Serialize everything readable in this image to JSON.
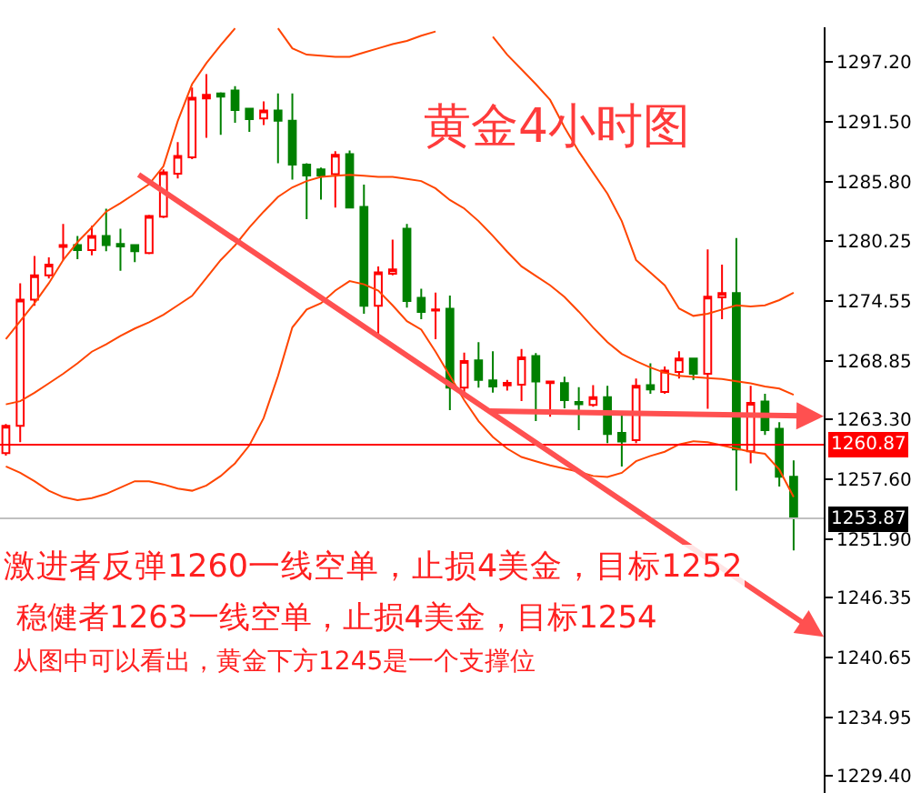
{
  "chart_data": {
    "type": "candlestick",
    "title": "黄金4小时图",
    "categories": [
      null,
      null,
      null,
      null,
      null,
      null,
      null,
      null,
      null,
      null,
      null,
      null,
      null,
      null,
      null,
      null,
      null,
      null,
      null,
      null,
      null,
      null,
      null,
      null,
      null,
      null,
      null,
      null,
      null,
      null,
      null,
      null,
      null,
      null,
      null,
      null,
      null,
      null,
      null,
      null,
      null,
      null,
      null,
      null,
      null,
      null,
      null,
      null,
      null,
      null,
      null,
      null,
      null,
      null,
      null,
      null
    ],
    "ohlc": [
      [
        1260.07,
        1262.83,
        1259.84,
        1262.66
      ],
      [
        1262.66,
        1276.19,
        1261.1,
        1274.63
      ],
      [
        1274.63,
        1278.78,
        1274.06,
        1276.94
      ],
      [
        1276.94,
        1278.66,
        1276.65,
        1277.97
      ],
      [
        1279.64,
        1281.83,
        1278.37,
        1279.81
      ],
      [
        1279.81,
        1280.68,
        1278.49,
        1279.35
      ],
      [
        1279.35,
        1281.66,
        1278.84,
        1280.68
      ],
      [
        1280.68,
        1283.27,
        1279.24,
        1279.81
      ],
      [
        1279.93,
        1281.37,
        1277.39,
        1279.7
      ],
      [
        1279.81,
        1279.81,
        1278.2,
        1279.24
      ],
      [
        1279.07,
        1282.69,
        1278.95,
        1282.58
      ],
      [
        1282.52,
        1287.01,
        1282.4,
        1286.72
      ],
      [
        1286.61,
        1289.6,
        1286.15,
        1288.28
      ],
      [
        1288.16,
        1294.78,
        1287.99,
        1293.8
      ],
      [
        1293.75,
        1296.05,
        1290.0,
        1294.09
      ],
      [
        1294.21,
        1294.32,
        1290.29,
        1293.92
      ],
      [
        1294.49,
        1294.9,
        1291.44,
        1292.65
      ],
      [
        1292.77,
        1292.77,
        1290.58,
        1291.79
      ],
      [
        1291.85,
        1293.46,
        1291.21,
        1292.59
      ],
      [
        1292.59,
        1294.21,
        1287.59,
        1291.62
      ],
      [
        1291.62,
        1294.21,
        1286.03,
        1287.47
      ],
      [
        1287.47,
        1287.59,
        1282.29,
        1286.43
      ],
      [
        1287.01,
        1287.18,
        1284.13,
        1286.43
      ],
      [
        1286.55,
        1288.74,
        1283.38,
        1288.39
      ],
      [
        1288.45,
        1288.8,
        1283.38,
        1283.38
      ],
      [
        1283.44,
        1285.57,
        1273.31,
        1274.06
      ],
      [
        1274.06,
        1277.8,
        1271.06,
        1277.22
      ],
      [
        1277.11,
        1280.33,
        1276.94,
        1277.51
      ],
      [
        1281.37,
        1281.83,
        1273.88,
        1274.52
      ],
      [
        1274.81,
        1275.67,
        1272.79,
        1273.48
      ],
      [
        1273.6,
        1275.32,
        1270.89,
        1273.71
      ],
      [
        1273.77,
        1275.04,
        1264.15,
        1266.28
      ],
      [
        1266.28,
        1269.62,
        1265.59,
        1268.82
      ],
      [
        1268.88,
        1270.6,
        1266.28,
        1267.03
      ],
      [
        1266.98,
        1269.74,
        1265.82,
        1266.4
      ],
      [
        1266.51,
        1267.03,
        1266.0,
        1266.74
      ],
      [
        1266.57,
        1269.95,
        1265.02,
        1269.16
      ],
      [
        1269.28,
        1269.56,
        1263.12,
        1266.86
      ],
      [
        1266.72,
        1266.92,
        1263.52,
        1266.86
      ],
      [
        1266.72,
        1267.32,
        1264.32,
        1265.09
      ],
      [
        1264.93,
        1266.34,
        1262.26,
        1264.7
      ],
      [
        1264.65,
        1266.52,
        1264.47,
        1265.39
      ],
      [
        1265.39,
        1266.46,
        1261.02,
        1261.88
      ],
      [
        1261.99,
        1263.98,
        1258.8,
        1261.18
      ],
      [
        1261.3,
        1267.15,
        1261.02,
        1266.46
      ],
      [
        1266.52,
        1268.59,
        1265.71,
        1266.11
      ],
      [
        1265.88,
        1268.3,
        1265.71,
        1267.9
      ],
      [
        1267.78,
        1269.74,
        1267.15,
        1269.05
      ],
      [
        1269.05,
        1269.05,
        1267.03,
        1267.61
      ],
      [
        1267.61,
        1279.41,
        1264.27,
        1274.92
      ],
      [
        1274.86,
        1277.97,
        1272.79,
        1275.27
      ],
      [
        1275.27,
        1280.5,
        1256.5,
        1260.41
      ],
      [
        1260.24,
        1266.46,
        1259.09,
        1264.85
      ],
      [
        1264.96,
        1265.71,
        1261.79,
        1262.26
      ],
      [
        1262.37,
        1263.0,
        1256.9,
        1257.82
      ],
      [
        1257.82,
        1259.38,
        1250.84,
        1253.87
      ]
    ],
    "series": [
      {
        "type": "line",
        "color": "#ff4500",
        "values": [
          1270.9,
          1272.6,
          1274.3,
          1276.2,
          1278.4,
          1280.1,
          1281.5,
          1283.0,
          1283.8,
          1284.7,
          1285.6,
          1287.3,
          1291.6,
          1295.1,
          1297.1,
          1298.8,
          1300.4,
          null,
          null,
          1300.4,
          1298.5,
          1297.9,
          1297.8,
          1297.7,
          1297.7,
          1298.1,
          1298.5,
          1298.9,
          1299.2,
          1299.7,
          1300.1,
          null,
          null,
          null,
          1299.6,
          1297.9,
          1296.5,
          1295.1,
          1293.6,
          1291.0,
          1288.7,
          1286.7,
          1284.7,
          1282.1,
          1278.4,
          1277.2,
          1276.0,
          1273.8,
          1273.1,
          1273.3,
          1273.7,
          1274.1,
          1274.0,
          1274.1,
          1274.6,
          1275.3
        ]
      },
      {
        "type": "line",
        "color": "#ff4500",
        "values": [
          1264.7,
          1265.0,
          1265.8,
          1266.7,
          1267.6,
          1268.6,
          1269.7,
          1270.4,
          1271.2,
          1271.9,
          1272.5,
          1273.2,
          1274.1,
          1275.0,
          1276.7,
          1278.4,
          1279.8,
          1281.5,
          1283.0,
          1284.4,
          1285.3,
          1285.9,
          1286.3,
          1286.4,
          1286.5,
          1286.4,
          1286.3,
          1286.3,
          1286.1,
          1285.9,
          1285.2,
          1284.1,
          1283.3,
          1282.1,
          1280.7,
          1279.2,
          1277.8,
          1276.9,
          1276.0,
          1274.9,
          1273.5,
          1272.0,
          1270.6,
          1269.5,
          1268.8,
          1268.2,
          1267.7,
          1267.4,
          1267.3,
          1267.2,
          1267.1,
          1266.9,
          1266.7,
          1266.4,
          1266.2,
          1265.6
        ]
      },
      {
        "type": "line",
        "color": "#ff4500",
        "values": [
          1258.8,
          1258.2,
          1257.4,
          1256.5,
          1255.9,
          1255.6,
          1255.8,
          1256.2,
          1256.8,
          1257.4,
          1257.4,
          1257.1,
          1256.7,
          1256.5,
          1257.0,
          1257.9,
          1259.1,
          1260.8,
          1263.4,
          1267.4,
          1272.0,
          1273.7,
          1274.3,
          1275.5,
          1276.4,
          1276.1,
          1275.5,
          1274.1,
          1272.6,
          1271.8,
          1269.7,
          1267.4,
          1265.1,
          1263.1,
          1261.6,
          1260.5,
          1259.7,
          1259.3,
          1258.9,
          1258.6,
          1258.3,
          1257.9,
          1257.8,
          1258.2,
          1259.3,
          1259.8,
          1260.2,
          1260.9,
          1261.2,
          1261.1,
          1260.8,
          1260.5,
          1260.2,
          1260.0,
          1258.5,
          1255.9
        ]
      }
    ],
    "ylim": [
      1227.8,
      1300.5
    ],
    "yticks": [
      {
        "value": 1297.2,
        "label": "1297.20"
      },
      {
        "value": 1291.5,
        "label": "1291.50"
      },
      {
        "value": 1285.8,
        "label": "1285.80"
      },
      {
        "value": 1280.25,
        "label": "1280.25"
      },
      {
        "value": 1274.55,
        "label": "1274.55"
      },
      {
        "value": 1268.85,
        "label": "1268.85"
      },
      {
        "value": 1263.3,
        "label": "1263.30"
      },
      {
        "value": 1257.6,
        "label": "1257.60"
      },
      {
        "value": 1251.9,
        "label": "1251.90"
      },
      {
        "value": 1246.35,
        "label": "1246.35"
      },
      {
        "value": 1240.65,
        "label": "1240.65"
      },
      {
        "value": 1234.95,
        "label": "1234.95"
      },
      {
        "value": 1229.4,
        "label": "1229.40"
      }
    ],
    "tick_labels": "y",
    "ref_lines": [
      {
        "axis": "y",
        "value": 1260.87,
        "label": "1260.87",
        "color": "#ff0000"
      },
      {
        "axis": "y",
        "value": 1253.87,
        "label": "1253.87",
        "color": "#c0c0c0"
      }
    ],
    "annotations": [
      "激进者反弹1260一线空单，止损4美金，目标1252",
      "稳健者1263一线空单，止损4美金，目标1254",
      "从图中可以看出，黄金下方1245是一个支撑位"
    ]
  }
}
